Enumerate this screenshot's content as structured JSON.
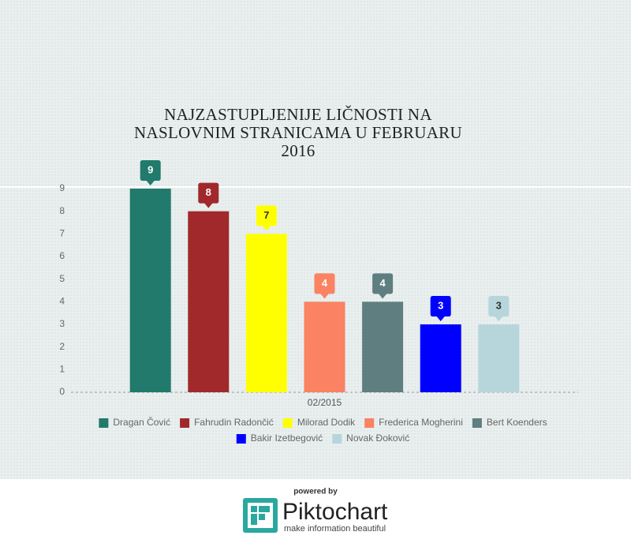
{
  "chart_data": {
    "type": "bar",
    "title": "NAJZASTUPLJENIJE LIČNOSTI NA NASLOVNIM STRANICAMA U FEBRUARU 2016",
    "categories": [
      "02/2015"
    ],
    "series": [
      {
        "name": "Dragan Čović",
        "color": "#217a6c",
        "values": [
          9
        ]
      },
      {
        "name": "Fahrudin Radončić",
        "color": "#a1292b",
        "values": [
          8
        ]
      },
      {
        "name": "Milorad Dodik",
        "color": "#ffff00",
        "values": [
          7
        ]
      },
      {
        "name": "Frederica Mogherini",
        "color": "#fb8262",
        "values": [
          4
        ]
      },
      {
        "name": "Bert Koenders",
        "color": "#5f7e80",
        "values": [
          4
        ]
      },
      {
        "name": "Bakir Izetbegović",
        "color": "#0000ff",
        "values": [
          3
        ]
      },
      {
        "name": "Novak Đoković",
        "color": "#b6d6dc",
        "values": [
          3
        ]
      }
    ],
    "ylim": [
      0,
      9
    ],
    "yticks": [
      0,
      1,
      2,
      3,
      4,
      5,
      6,
      7,
      8,
      9
    ],
    "legend": "bottom"
  },
  "footer": {
    "powered_by": "powered by",
    "brand": "Piktochart",
    "tagline": "make information beautiful"
  }
}
